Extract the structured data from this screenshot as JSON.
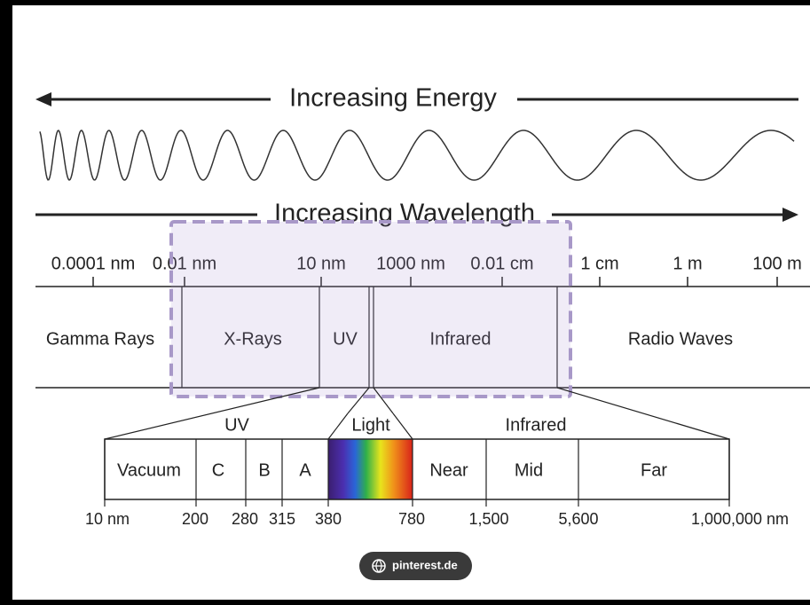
{
  "header": {
    "energy": "Increasing Energy",
    "wavelength": "Increasing Wavelength"
  },
  "scale": [
    "0.0001 nm",
    "0.01 nm",
    "10 nm",
    "1000 nm",
    "0.01 cm",
    "1 cm",
    "1 m",
    "100 m"
  ],
  "bands": [
    "Gamma Rays",
    "X-Rays",
    "UV",
    "Infrared",
    "Radio Waves"
  ],
  "groups": [
    "UV",
    "Light",
    "Infrared"
  ],
  "detail_bands": [
    "Vacuum",
    "C",
    "B",
    "A",
    "Near",
    "Mid",
    "Far"
  ],
  "detail_scale": [
    "10 nm",
    "200",
    "280",
    "315",
    "380",
    "780",
    "1,500",
    "5,600",
    "1,000,000 nm"
  ],
  "badge": "pinterest.de"
}
